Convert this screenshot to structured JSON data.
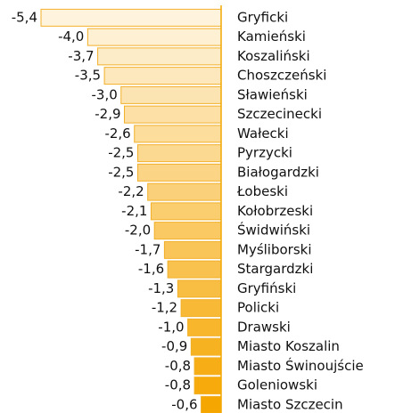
{
  "chart_data": {
    "type": "bar",
    "orientation": "horizontal",
    "categories": [
      "Gryficki",
      "Kamieński",
      "Koszaliński",
      "Choszczeński",
      "Sławieński",
      "Szczecinecki",
      "Wałecki",
      "Pyrzycki",
      "Białogardzki",
      "Łobeski",
      "Kołobrzeski",
      "Świdwiński",
      "Myśliborski",
      "Stargardzki",
      "Gryfiński",
      "Policki",
      "Drawski",
      "Miasto Koszalin",
      "Miasto Świnoujście",
      "Goleniowski",
      "Miasto Szczecin"
    ],
    "values": [
      -5.4,
      -4.0,
      -3.7,
      -3.5,
      -3.0,
      -2.9,
      -2.6,
      -2.5,
      -2.5,
      -2.2,
      -2.1,
      -2.0,
      -1.7,
      -1.6,
      -1.3,
      -1.2,
      -1.0,
      -0.9,
      -0.8,
      -0.8,
      -0.6
    ],
    "value_labels": [
      "-5,4",
      "-4,0",
      "-3,7",
      "-3,5",
      "-3,0",
      "-2,9",
      "-2,6",
      "-2,5",
      "-2,5",
      "-2,2",
      "-2,1",
      "-2,0",
      "-1,7",
      "-1,6",
      "-1,3",
      "-1,2",
      "-1,0",
      "-0,9",
      "-0,8",
      "-0,8",
      "-0,6"
    ],
    "colors": [
      "#fef4de",
      "#fef0d3",
      "#fdecc8",
      "#fde8bd",
      "#fce4b2",
      "#fce0a6",
      "#fcdd9b",
      "#fbd990",
      "#fbd585",
      "#fad17a",
      "#facd6f",
      "#fac964",
      "#f9c559",
      "#f9c14e",
      "#f8bd43",
      "#f8b937",
      "#f8b62c",
      "#f7b221",
      "#f7ae16",
      "#f6aa0b",
      "#f6a600"
    ],
    "xlim": [
      -5.4,
      0
    ]
  }
}
